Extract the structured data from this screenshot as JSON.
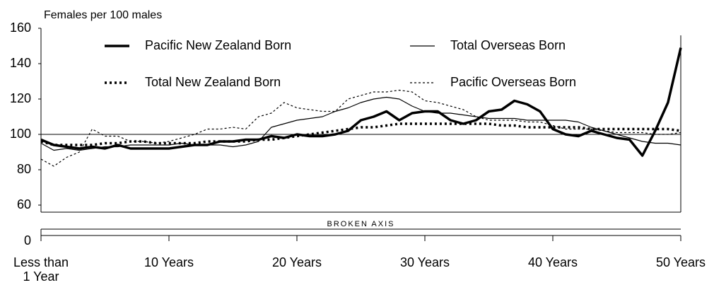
{
  "chart_data": {
    "type": "line",
    "y_axis_label": "Females per 100 males",
    "x": [
      0,
      1,
      2,
      3,
      4,
      5,
      6,
      7,
      8,
      9,
      10,
      11,
      12,
      13,
      14,
      15,
      16,
      17,
      18,
      19,
      20,
      21,
      22,
      23,
      24,
      25,
      26,
      27,
      28,
      29,
      30,
      31,
      32,
      33,
      34,
      35,
      36,
      37,
      38,
      39,
      40,
      41,
      42,
      43,
      44,
      45,
      46,
      47,
      48,
      49,
      50
    ],
    "xlim": [
      0,
      50
    ],
    "xticks": [
      {
        "value": 0,
        "label": "Less than\n1 Year"
      },
      {
        "value": 10,
        "label": "10 Years"
      },
      {
        "value": 20,
        "label": "20 Years"
      },
      {
        "value": 30,
        "label": "30 Years"
      },
      {
        "value": 40,
        "label": "40 Years"
      },
      {
        "value": 50,
        "label": "50 Years"
      }
    ],
    "ylim": [
      60,
      160
    ],
    "yticks": [
      60,
      80,
      100,
      120,
      140,
      160
    ],
    "reference_line": 100,
    "broken_axis": {
      "label": "BROKEN AXIS",
      "tick": 0
    },
    "series": [
      {
        "name": "Pacific New Zealand Born",
        "color": "#000000",
        "line_style": "solid",
        "line_width": "thick",
        "values": [
          97,
          94,
          93,
          92,
          93,
          92,
          94,
          92,
          92,
          92,
          92,
          93,
          94,
          94,
          96,
          96,
          97,
          97,
          99,
          98,
          100,
          99,
          99,
          100,
          102,
          108,
          110,
          113,
          108,
          112,
          113,
          113,
          108,
          106,
          108,
          113,
          114,
          119,
          117,
          113,
          103,
          100,
          99,
          102,
          100,
          98,
          97,
          88,
          102,
          118,
          149
        ]
      },
      {
        "name": "Total Overseas Born",
        "color": "#000000",
        "line_style": "solid",
        "line_width": "thin",
        "values": [
          95,
          91,
          92,
          91,
          92,
          93,
          93,
          94,
          94,
          94,
          94,
          95,
          94,
          94,
          94,
          93,
          94,
          96,
          104,
          106,
          108,
          109,
          110,
          113,
          115,
          118,
          120,
          121,
          120,
          116,
          113,
          112,
          112,
          111,
          110,
          109,
          109,
          109,
          108,
          108,
          108,
          108,
          107,
          104,
          102,
          100,
          98,
          96,
          95,
          95,
          94
        ]
      },
      {
        "name": "Total New Zealand Born",
        "color": "#000000",
        "line_style": "dotted",
        "line_width": "thick",
        "values": [
          96,
          94,
          94,
          94,
          94,
          95,
          95,
          96,
          96,
          95,
          95,
          95,
          95,
          96,
          96,
          96,
          96,
          97,
          97,
          98,
          99,
          100,
          101,
          102,
          103,
          104,
          104,
          105,
          106,
          106,
          106,
          106,
          106,
          106,
          106,
          106,
          105,
          105,
          104,
          104,
          104,
          104,
          104,
          103,
          103,
          103,
          103,
          103,
          103,
          103,
          102
        ]
      },
      {
        "name": "Pacific Overseas Born",
        "color": "#000000",
        "line_style": "dashed",
        "line_width": "thin",
        "values": [
          86,
          82,
          87,
          90,
          103,
          99,
          99,
          96,
          96,
          95,
          96,
          98,
          100,
          103,
          103,
          104,
          103,
          110,
          112,
          118,
          115,
          114,
          113,
          113,
          120,
          122,
          124,
          124,
          125,
          124,
          119,
          118,
          116,
          114,
          110,
          108,
          108,
          108,
          107,
          107,
          105,
          103,
          103,
          103,
          102,
          101,
          101,
          101,
          100,
          100,
          101
        ]
      }
    ]
  }
}
